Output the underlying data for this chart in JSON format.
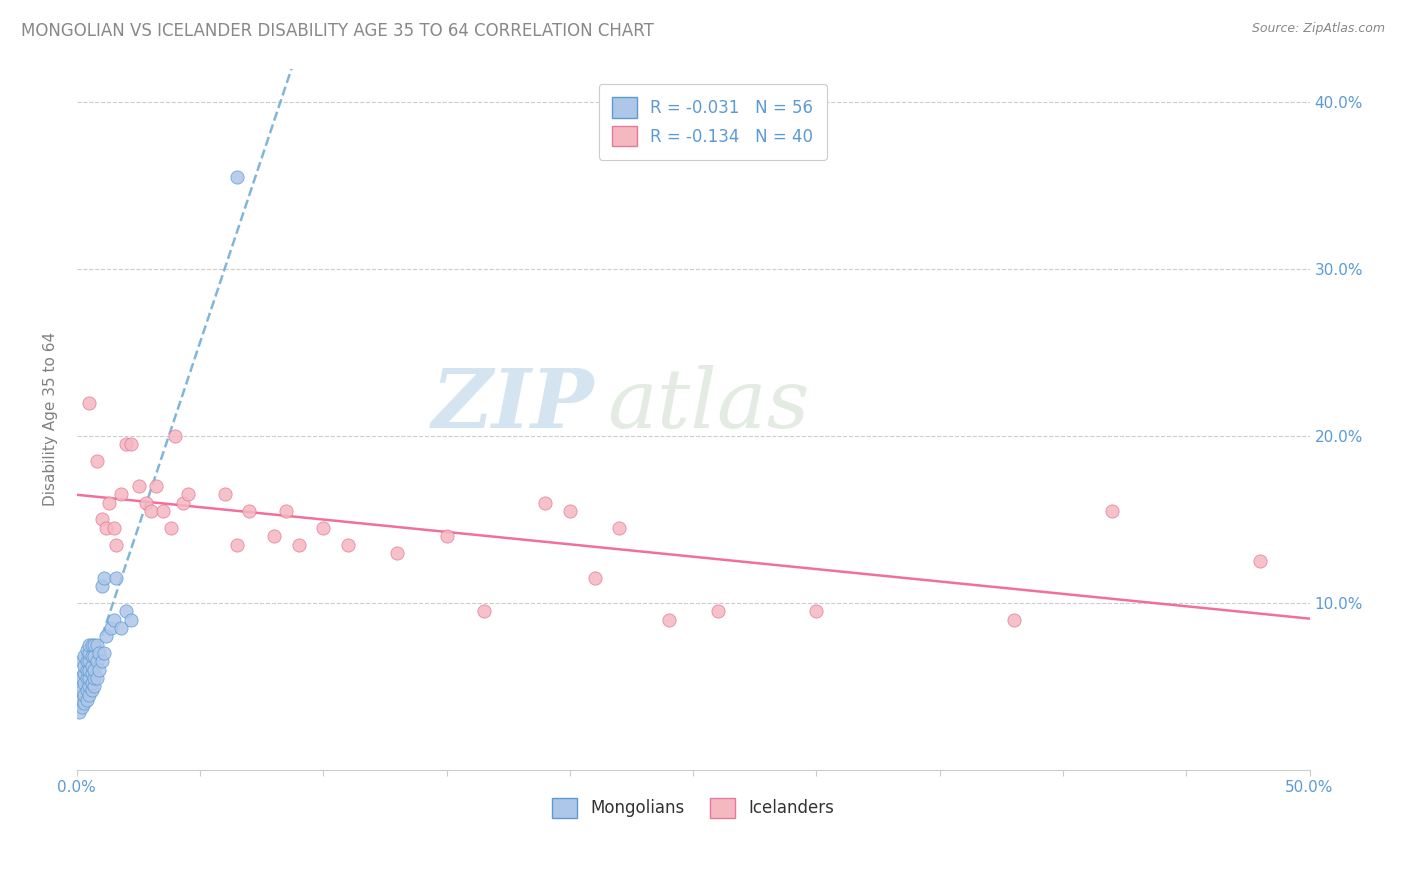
{
  "title": "MONGOLIAN VS ICELANDER DISABILITY AGE 35 TO 64 CORRELATION CHART",
  "source": "Source: ZipAtlas.com",
  "ylabel": "Disability Age 35 to 64",
  "xlim": [
    0.0,
    0.5
  ],
  "ylim": [
    0.0,
    0.42
  ],
  "xtick_vals": [
    0.0,
    0.05,
    0.1,
    0.15,
    0.2,
    0.25,
    0.3,
    0.35,
    0.4,
    0.45,
    0.5
  ],
  "xtick_label_left": "0.0%",
  "xtick_label_right": "50.0%",
  "ytick_vals": [
    0.1,
    0.2,
    0.3,
    0.4
  ],
  "ytick_labels_right": [
    "10.0%",
    "20.0%",
    "30.0%",
    "40.0%"
  ],
  "legend_R1": "R = -0.031",
  "legend_N1": "N = 56",
  "legend_R2": "R = -0.134",
  "legend_N2": "N = 40",
  "mongolian_fill": "#aec6e8",
  "mongolian_edge": "#5b9bd5",
  "icelander_fill": "#f4b8c1",
  "icelander_edge": "#e8789a",
  "mongolian_line_color": "#6aaad4",
  "icelander_line_color": "#f06090",
  "watermark_zip": "ZIP",
  "watermark_atlas": "atlas",
  "mongolian_x": [
    0.001,
    0.001,
    0.001,
    0.001,
    0.002,
    0.002,
    0.002,
    0.002,
    0.002,
    0.003,
    0.003,
    0.003,
    0.003,
    0.003,
    0.003,
    0.004,
    0.004,
    0.004,
    0.004,
    0.004,
    0.004,
    0.005,
    0.005,
    0.005,
    0.005,
    0.005,
    0.005,
    0.005,
    0.006,
    0.006,
    0.006,
    0.006,
    0.006,
    0.006,
    0.007,
    0.007,
    0.007,
    0.007,
    0.007,
    0.008,
    0.008,
    0.008,
    0.009,
    0.009,
    0.01,
    0.01,
    0.011,
    0.011,
    0.012,
    0.014,
    0.015,
    0.016,
    0.018,
    0.02,
    0.022,
    0.065
  ],
  "mongolian_y": [
    0.035,
    0.04,
    0.045,
    0.055,
    0.038,
    0.042,
    0.048,
    0.055,
    0.065,
    0.04,
    0.045,
    0.052,
    0.058,
    0.062,
    0.068,
    0.042,
    0.048,
    0.055,
    0.06,
    0.065,
    0.072,
    0.045,
    0.05,
    0.055,
    0.06,
    0.065,
    0.07,
    0.075,
    0.048,
    0.052,
    0.058,
    0.062,
    0.068,
    0.075,
    0.05,
    0.055,
    0.06,
    0.068,
    0.075,
    0.055,
    0.065,
    0.075,
    0.06,
    0.07,
    0.065,
    0.11,
    0.07,
    0.115,
    0.08,
    0.085,
    0.09,
    0.115,
    0.085,
    0.095,
    0.09,
    0.355
  ],
  "icelander_x": [
    0.005,
    0.008,
    0.01,
    0.012,
    0.013,
    0.015,
    0.016,
    0.018,
    0.02,
    0.022,
    0.025,
    0.028,
    0.03,
    0.032,
    0.035,
    0.038,
    0.04,
    0.043,
    0.045,
    0.06,
    0.065,
    0.07,
    0.08,
    0.085,
    0.09,
    0.1,
    0.11,
    0.13,
    0.15,
    0.165,
    0.19,
    0.2,
    0.21,
    0.22,
    0.24,
    0.26,
    0.3,
    0.38,
    0.42,
    0.48
  ],
  "icelander_y": [
    0.22,
    0.185,
    0.15,
    0.145,
    0.16,
    0.145,
    0.135,
    0.165,
    0.195,
    0.195,
    0.17,
    0.16,
    0.155,
    0.17,
    0.155,
    0.145,
    0.2,
    0.16,
    0.165,
    0.165,
    0.135,
    0.155,
    0.14,
    0.155,
    0.135,
    0.145,
    0.135,
    0.13,
    0.14,
    0.095,
    0.16,
    0.155,
    0.115,
    0.145,
    0.09,
    0.095,
    0.095,
    0.09,
    0.155,
    0.125
  ]
}
